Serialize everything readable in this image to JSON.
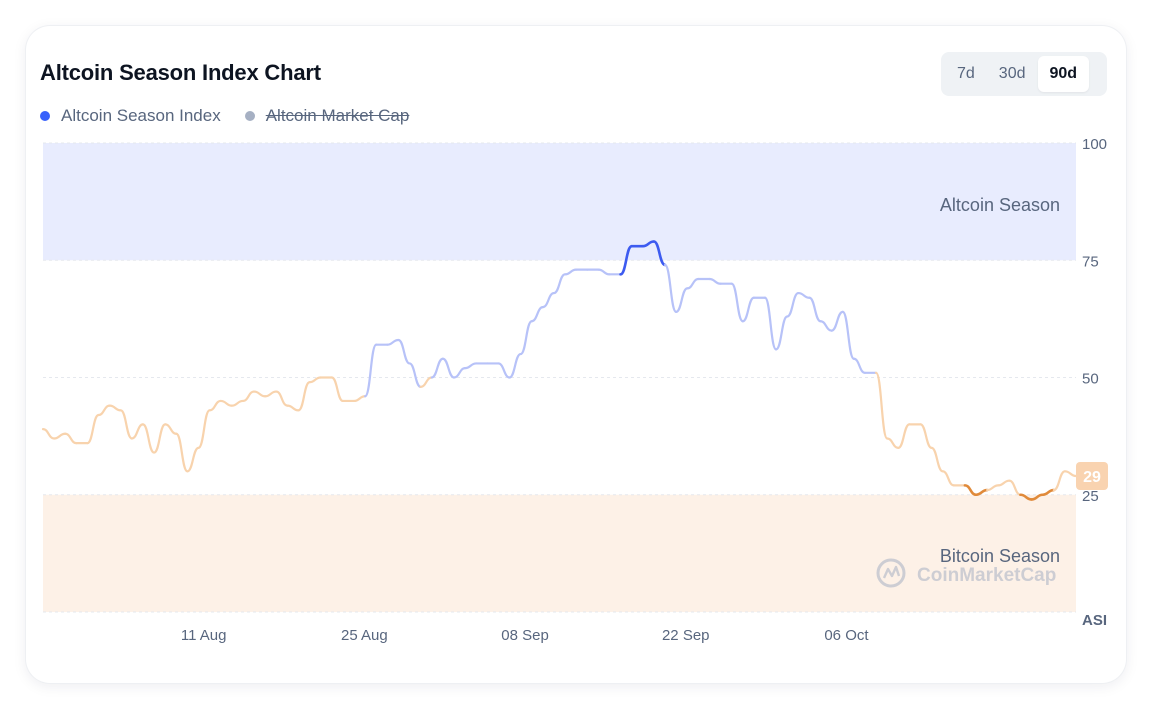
{
  "title": "Altcoin Season Index Chart",
  "range_buttons": [
    "7d",
    "30d",
    "90d"
  ],
  "active_range": "90d",
  "legend": [
    {
      "label": "Altcoin Season Index",
      "color": "#3861fb",
      "active": true
    },
    {
      "label": "Altcoin Market Cap",
      "color": "#a6b0c3",
      "active": false
    }
  ],
  "watermark": "CoinMarketCap",
  "chart_data": {
    "type": "line",
    "title": "Altcoin Season Index Chart",
    "y_axis_label": "ASI",
    "ylim": [
      0,
      100
    ],
    "y_ticks": [
      25,
      50,
      75,
      100
    ],
    "x_tick_labels": [
      "11 Aug",
      "25 Aug",
      "08 Sep",
      "22 Sep",
      "06 Oct"
    ],
    "x_range_days": [
      0,
      90
    ],
    "x_tick_days": [
      14,
      28,
      42,
      56,
      70
    ],
    "zones": [
      {
        "label": "Altcoin Season",
        "from": 75,
        "to": 100,
        "color": "#e8ecfe"
      },
      {
        "label": "Bitcoin Season",
        "from": 0,
        "to": 25,
        "color": "#fdf1e7"
      }
    ],
    "current_value": 29,
    "series": [
      {
        "name": "Altcoin Season Index",
        "values": [
          39,
          37,
          38,
          36,
          36,
          42,
          44,
          43,
          37,
          40,
          34,
          40,
          38,
          30,
          35,
          43,
          45,
          44,
          45,
          47,
          46,
          47,
          44,
          43,
          49,
          50,
          50,
          45,
          45,
          46,
          57,
          57,
          58,
          53,
          48,
          50,
          54,
          50,
          52,
          53,
          53,
          53,
          50,
          55,
          62,
          65,
          68,
          72,
          73,
          73,
          73,
          72,
          72,
          78,
          78,
          79,
          74,
          64,
          69,
          71,
          71,
          70,
          70,
          62,
          67,
          67,
          56,
          63,
          68,
          67,
          62,
          60,
          64,
          54,
          51,
          51,
          37,
          35,
          40,
          40,
          35,
          30,
          27,
          27,
          25,
          26,
          27,
          28,
          25,
          24,
          25,
          26,
          30,
          29
        ]
      }
    ]
  }
}
